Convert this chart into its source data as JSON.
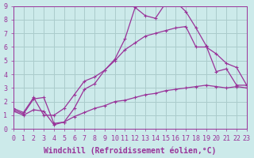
{
  "background_color": "#cceaea",
  "grid_color": "#aacccc",
  "line_color": "#993399",
  "marker": "+",
  "xlim": [
    0,
    23
  ],
  "ylim": [
    0,
    9
  ],
  "xlabel": "Windchill (Refroidissement éolien,°C)",
  "xlabel_fontsize": 7.0,
  "tick_fontsize": 6.0,
  "line1_x": [
    0,
    1,
    2,
    3,
    4,
    5,
    6,
    7,
    8,
    9,
    10,
    11,
    12,
    13,
    14,
    15,
    16,
    17,
    18,
    19,
    20,
    21,
    22,
    23
  ],
  "line1_y": [
    1.4,
    1.1,
    2.2,
    2.3,
    0.4,
    0.5,
    1.5,
    2.9,
    3.3,
    4.3,
    5.1,
    6.6,
    8.9,
    8.3,
    8.1,
    9.2,
    9.3,
    8.6,
    7.4,
    6.1,
    4.2,
    4.4,
    3.2,
    3.2
  ],
  "line2_x": [
    0,
    1,
    2,
    3,
    4,
    5,
    6,
    7,
    8,
    9,
    10,
    11,
    12,
    13,
    14,
    15,
    16,
    17,
    18,
    19,
    20,
    21,
    22,
    23
  ],
  "line2_y": [
    1.5,
    1.2,
    2.3,
    1.0,
    1.0,
    1.5,
    2.5,
    3.5,
    3.8,
    4.3,
    5.0,
    5.8,
    6.3,
    6.8,
    7.0,
    7.2,
    7.4,
    7.5,
    6.0,
    6.0,
    5.5,
    4.8,
    4.5,
    3.2
  ],
  "line3_x": [
    0,
    1,
    2,
    3,
    4,
    5,
    6,
    7,
    8,
    9,
    10,
    11,
    12,
    13,
    14,
    15,
    16,
    17,
    18,
    19,
    20,
    21,
    22,
    23
  ],
  "line3_y": [
    1.3,
    1.0,
    1.4,
    1.3,
    0.3,
    0.5,
    0.9,
    1.2,
    1.5,
    1.7,
    2.0,
    2.1,
    2.3,
    2.5,
    2.6,
    2.8,
    2.9,
    3.0,
    3.1,
    3.2,
    3.1,
    3.0,
    3.1,
    3.0
  ]
}
